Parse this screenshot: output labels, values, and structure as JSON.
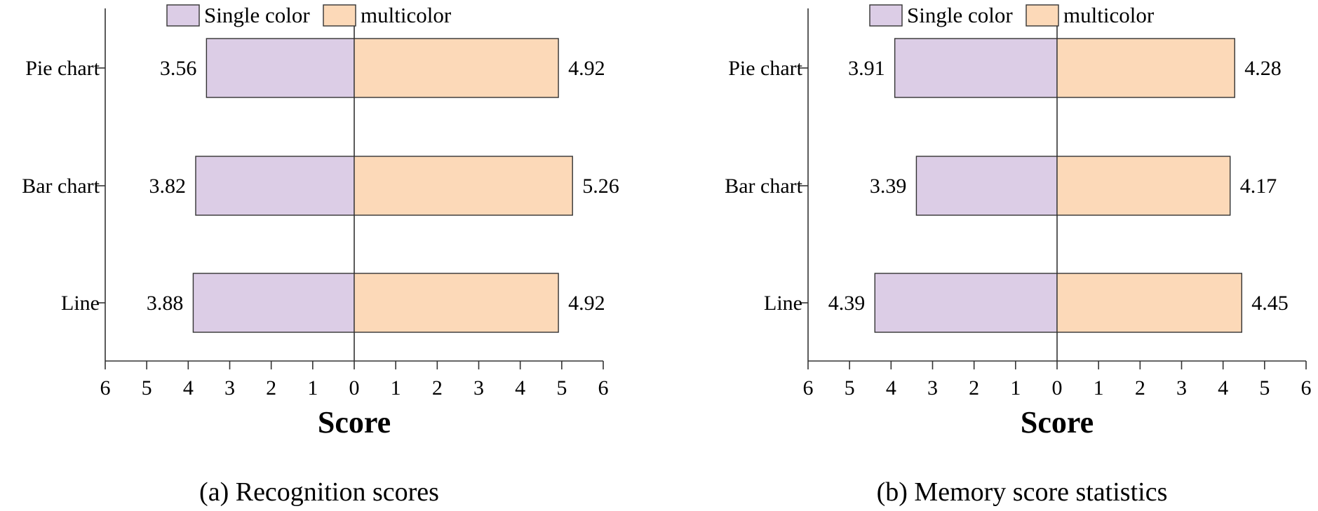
{
  "chart_data": [
    {
      "type": "bar",
      "orientation": "horizontal-diverging",
      "caption": "(a) Recognition scores",
      "xlabel": "Score",
      "categories": [
        "Pie chart",
        "Bar chart",
        "Line"
      ],
      "x_ticks": [
        "6",
        "5",
        "4",
        "3",
        "2",
        "1",
        "0",
        "1",
        "2",
        "3",
        "4",
        "5",
        "6"
      ],
      "xlim": [
        -6,
        6
      ],
      "legend_position": "top",
      "series": [
        {
          "name": "Single color",
          "side": "left",
          "color": "#dccde6",
          "values": [
            3.56,
            3.82,
            3.88
          ],
          "labels": [
            "3.56",
            "3.82",
            "3.88"
          ]
        },
        {
          "name": "multicolor",
          "side": "right",
          "color": "#fcd9b8",
          "values": [
            4.92,
            5.26,
            4.92
          ],
          "labels": [
            "4.92",
            "5.26",
            "4.92"
          ]
        }
      ]
    },
    {
      "type": "bar",
      "orientation": "horizontal-diverging",
      "caption": "(b) Memory score statistics",
      "xlabel": "Score",
      "categories": [
        "Pie chart",
        "Bar chart",
        "Line"
      ],
      "x_ticks": [
        "6",
        "5",
        "4",
        "3",
        "2",
        "1",
        "0",
        "1",
        "2",
        "3",
        "4",
        "5",
        "6"
      ],
      "xlim": [
        -6,
        6
      ],
      "legend_position": "top",
      "series": [
        {
          "name": "Single color",
          "side": "left",
          "color": "#dccde6",
          "values": [
            3.91,
            3.39,
            4.39
          ],
          "labels": [
            "3.91",
            "3.39",
            "4.39"
          ]
        },
        {
          "name": "multicolor",
          "side": "right",
          "color": "#fcd9b8",
          "values": [
            4.28,
            4.17,
            4.45
          ],
          "labels": [
            "4.28",
            "4.17",
            "4.45"
          ]
        }
      ]
    }
  ]
}
